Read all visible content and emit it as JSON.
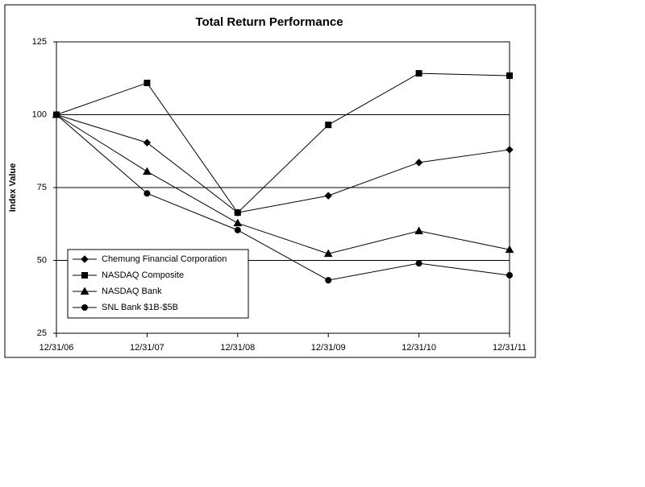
{
  "chart_data": {
    "type": "line",
    "title": "Total Return Performance",
    "y_label": "Index Value",
    "categories": [
      "12/31/06",
      "12/31/07",
      "12/31/08",
      "12/31/09",
      "12/31/10",
      "12/31/11"
    ],
    "series": [
      {
        "name": "Chemung Financial Corporation",
        "color": "#000000",
        "marker": "diamond",
        "values": [
          100,
          90.4,
          66.4,
          72.2,
          83.6,
          88
        ]
      },
      {
        "name": "NASDAQ Composite",
        "color": "#000000",
        "marker": "square",
        "values": [
          100,
          110.9,
          66.4,
          96.5,
          114.2,
          113.4
        ]
      },
      {
        "name": "NASDAQ Bank",
        "color": "#000000",
        "marker": "triangle",
        "values": [
          100,
          80.5,
          62.8,
          52.3,
          60.1,
          53.7
        ]
      },
      {
        "name": "SNL Bank $1B-$5B",
        "color": "#000000",
        "marker": "circle",
        "values": [
          100,
          73,
          60.4,
          43.2,
          49,
          44.9
        ]
      }
    ],
    "ylim": [
      25,
      125
    ],
    "yticks": [
      25,
      50,
      75,
      100,
      125
    ],
    "grid": true
  }
}
